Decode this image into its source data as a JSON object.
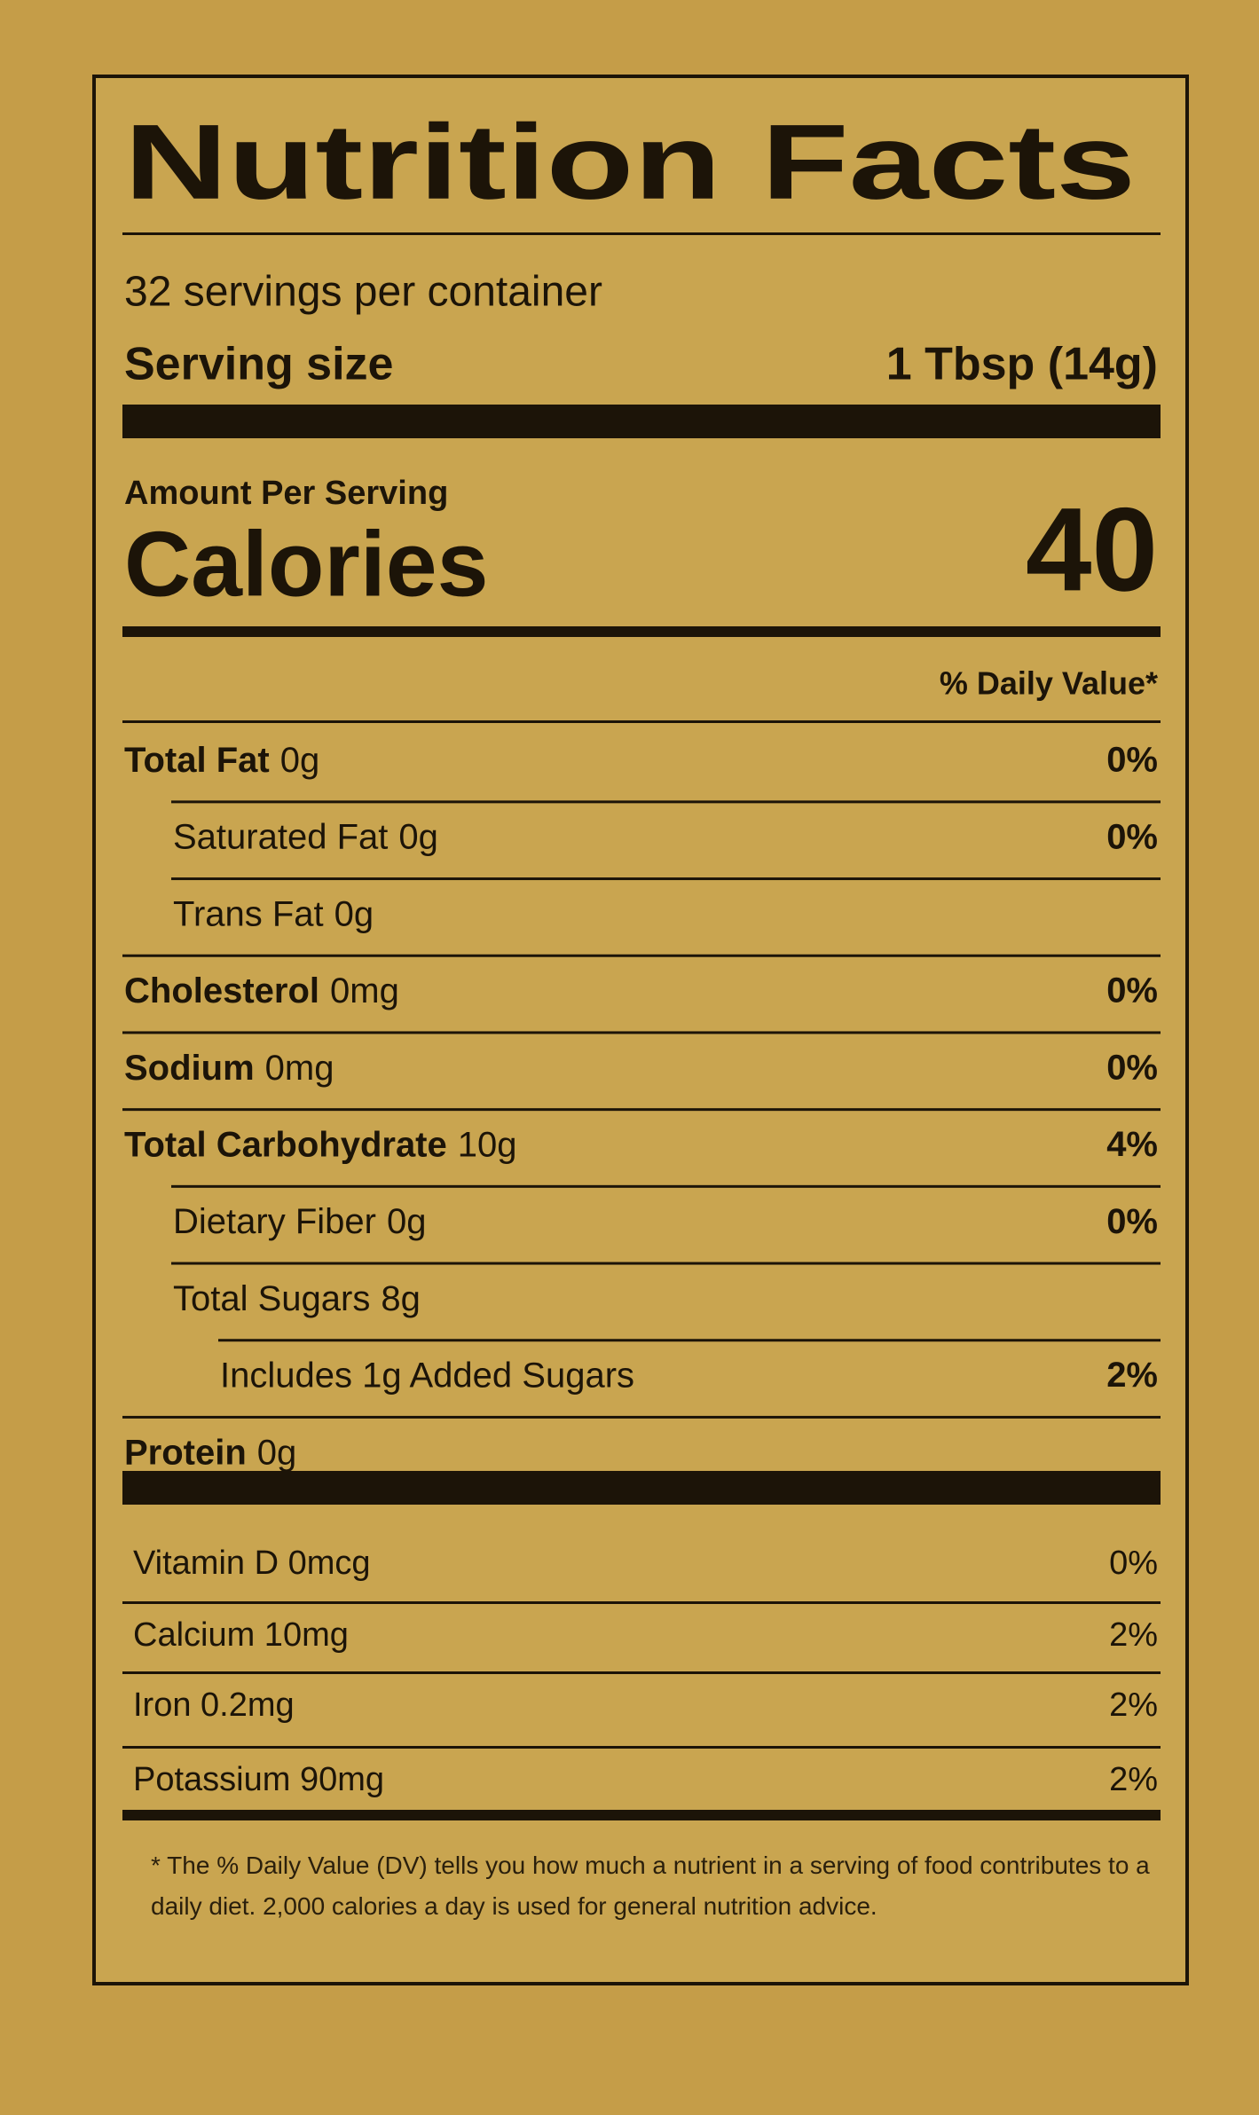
{
  "title": "Nutrition Facts",
  "servings_per_container": "32 servings per container",
  "serving_size": {
    "label": "Serving size",
    "value": "1 Tbsp (14g)"
  },
  "amount_per_serving": "Amount Per Serving",
  "calories": {
    "label": "Calories",
    "value": "40"
  },
  "daily_value_header": "% Daily Value*",
  "nutrients": [
    {
      "label": "Total Fat",
      "amount": "0g",
      "dv": "0%",
      "bold": true,
      "indent": 0
    },
    {
      "label": "Saturated Fat",
      "amount": "0g",
      "dv": "0%",
      "bold": false,
      "indent": 1
    },
    {
      "label": "Trans Fat",
      "amount": "0g",
      "dv": null,
      "bold": false,
      "indent": 1
    },
    {
      "label": "Cholesterol",
      "amount": "0mg",
      "dv": "0%",
      "bold": true,
      "indent": 0
    },
    {
      "label": "Sodium",
      "amount": "0mg",
      "dv": "0%",
      "bold": true,
      "indent": 0
    },
    {
      "label": "Total Carbohydrate",
      "amount": "10g",
      "dv": "4%",
      "bold": true,
      "indent": 0
    },
    {
      "label": "Dietary Fiber",
      "amount": "0g",
      "dv": "0%",
      "bold": false,
      "indent": 1
    },
    {
      "label": "Total Sugars",
      "amount": "8g",
      "dv": null,
      "bold": false,
      "indent": 1
    },
    {
      "label": "Includes 1g Added Sugars",
      "amount": null,
      "dv": "2%",
      "bold": false,
      "indent": 2
    },
    {
      "label": "Protein",
      "amount": "0g",
      "dv": null,
      "bold": true,
      "indent": 0
    }
  ],
  "vitamins": [
    {
      "label": "Vitamin D 0mcg",
      "dv": "0%"
    },
    {
      "label": "Calcium 10mg",
      "dv": "2%"
    },
    {
      "label": "Iron 0.2mg",
      "dv": "2%"
    },
    {
      "label": "Potassium 90mg",
      "dv": "2%"
    }
  ],
  "footnote": "* The % Daily Value (DV) tells you how much a nutrient in a serving of food contributes to a daily diet. 2,000 calories a day is used for general nutrition advice."
}
